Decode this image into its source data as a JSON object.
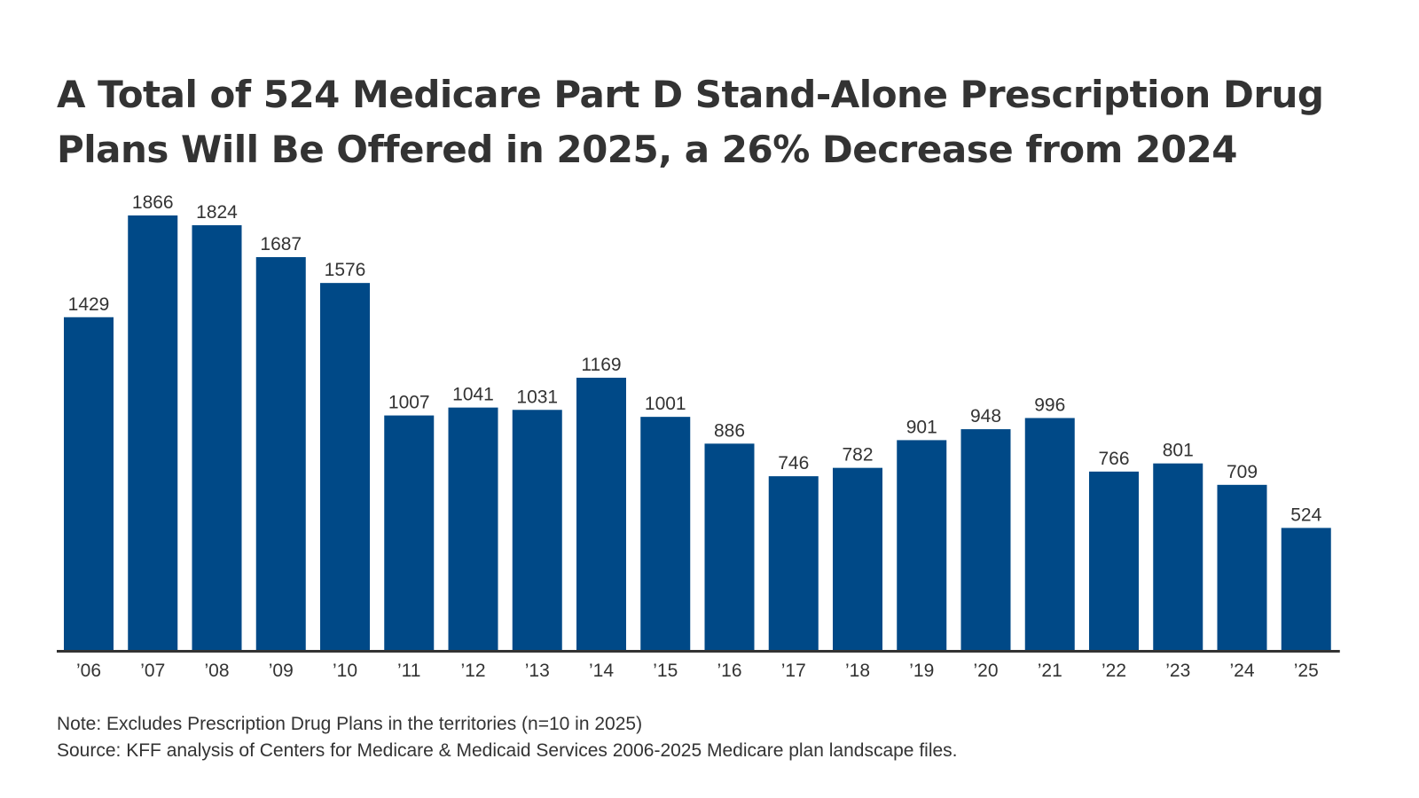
{
  "chart_data": {
    "type": "bar",
    "title": "A Total of 524 Medicare Part D Stand-Alone Prescription Drug Plans Will Be Offered in 2025, a 26% Decrease from 2024",
    "title_lines": [
      "A Total of 524 Medicare Part D Stand-Alone Prescription Drug",
      "Plans Will Be Offered in 2025, a 26% Decrease from 2024"
    ],
    "categories": [
      "’06",
      "’07",
      "’08",
      "’09",
      "’10",
      "’11",
      "’12",
      "’13",
      "’14",
      "’15",
      "’16",
      "’17",
      "’18",
      "’19",
      "’20",
      "’21",
      "’22",
      "’23",
      "’24",
      "’25"
    ],
    "values": [
      1429,
      1866,
      1824,
      1687,
      1576,
      1007,
      1041,
      1031,
      1169,
      1001,
      886,
      746,
      782,
      901,
      948,
      996,
      766,
      801,
      709,
      524
    ],
    "value_labels": [
      "1429",
      "1866",
      "1824",
      "1687",
      "1576",
      "1007",
      "1041",
      "1031",
      "1169",
      "1001",
      "886",
      "746",
      "782",
      "901",
      "948",
      "996",
      "766",
      "801",
      "709",
      "524"
    ],
    "xlabel": "",
    "ylabel": "",
    "ylim": [
      0,
      1866
    ],
    "grid": false,
    "legend": "none",
    "bar_color": "#004987",
    "axis_color": "#333333"
  },
  "notes": {
    "note": "Note: Excludes Prescription Drug Plans in the territories (n=10 in 2025)",
    "source": "Source: KFF analysis of Centers for Medicare & Medicaid Services 2006-2025 Medicare plan landscape files."
  }
}
